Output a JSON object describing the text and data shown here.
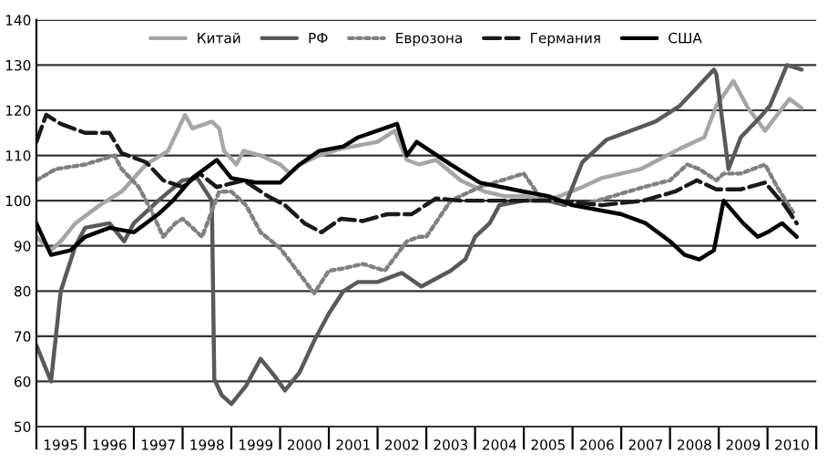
{
  "chart_data": {
    "type": "line",
    "xlim": [
      1995,
      2011
    ],
    "ylim": [
      50,
      140
    ],
    "yticks": [
      50,
      60,
      70,
      80,
      90,
      100,
      110,
      120,
      130,
      140
    ],
    "xticks": [
      {
        "value": 1995,
        "label": null
      },
      {
        "value": 1995.5,
        "label": "1995"
      },
      {
        "value": 1996,
        "label": null
      },
      {
        "value": 1996.5,
        "label": "1996"
      },
      {
        "value": 1997,
        "label": null
      },
      {
        "value": 1997.5,
        "label": "1997"
      },
      {
        "value": 1998,
        "label": null
      },
      {
        "value": 1998.5,
        "label": "1998"
      },
      {
        "value": 1999,
        "label": null
      },
      {
        "value": 1999.5,
        "label": "1999"
      },
      {
        "value": 2000,
        "label": null
      },
      {
        "value": 2000.5,
        "label": "2000"
      },
      {
        "value": 2001,
        "label": null
      },
      {
        "value": 2001.5,
        "label": "2001"
      },
      {
        "value": 2002,
        "label": null
      },
      {
        "value": 2002.5,
        "label": "2002"
      },
      {
        "value": 2003,
        "label": null
      },
      {
        "value": 2003.5,
        "label": "2003"
      },
      {
        "value": 2004,
        "label": null
      },
      {
        "value": 2004.5,
        "label": "2004"
      },
      {
        "value": 2005,
        "label": null
      },
      {
        "value": 2005.5,
        "label": "2005"
      },
      {
        "value": 2006,
        "label": null
      },
      {
        "value": 2006.5,
        "label": "2006"
      },
      {
        "value": 2007,
        "label": null
      },
      {
        "value": 2007.5,
        "label": "2007"
      },
      {
        "value": 2008,
        "label": null
      },
      {
        "value": 2008.5,
        "label": "2008"
      },
      {
        "value": 2009,
        "label": null
      },
      {
        "value": 2009.5,
        "label": "2009"
      },
      {
        "value": 2010,
        "label": null
      },
      {
        "value": 2010.5,
        "label": "2010"
      },
      {
        "value": 2011,
        "label": null
      }
    ],
    "grid": "y",
    "legend": "top",
    "marker": "none",
    "series": [
      {
        "name": "Китай",
        "color": "#a6a6a6",
        "line_style": "solid",
        "x": [
          1995,
          1995.3,
          1995.5,
          1995.8,
          1996.3,
          1996.75,
          1997.25,
          1997.7,
          1998.05,
          1998.2,
          1998.6,
          1998.75,
          1998.85,
          1999.1,
          1999.25,
          1999.6,
          2000,
          2000.2,
          2000.4,
          2000.8,
          2001.25,
          2002,
          2002.35,
          2002.6,
          2002.85,
          2003.2,
          2003.7,
          2004.2,
          2004.6,
          2005,
          2005.5,
          2006.2,
          2006.6,
          2007.4,
          2008.2,
          2008.7,
          2008.95,
          2009.3,
          2009.6,
          2009.95,
          2010.45,
          2010.7
        ],
        "values": [
          92,
          89,
          91,
          95,
          99,
          102,
          108,
          111,
          119,
          116,
          117.5,
          116,
          111,
          108,
          111,
          110,
          108,
          106,
          108,
          110,
          111.5,
          113,
          115.5,
          109,
          108,
          109,
          104.5,
          102,
          101,
          101,
          100,
          103,
          105,
          107,
          111.5,
          114,
          121,
          126.5,
          120.5,
          115.5,
          122.5,
          120.5
        ]
      },
      {
        "name": "РФ",
        "color": "#595959",
        "line_style": "solid",
        "x": [
          1995,
          1995.3,
          1995.5,
          1995.8,
          1996,
          1996.5,
          1996.8,
          1997,
          1997.5,
          1998,
          1998.3,
          1998.6,
          1998.65,
          1998.8,
          1999,
          1999.3,
          1999.6,
          1999.9,
          2000.1,
          2000.4,
          2000.7,
          2001,
          2001.3,
          2001.6,
          2002,
          2002.5,
          2002.9,
          2003.5,
          2003.8,
          2004,
          2004.3,
          2004.5,
          2005,
          2005.5,
          2005.85,
          2006.2,
          2006.7,
          2007.7,
          2008.2,
          2008.55,
          2008.9,
          2008.95,
          2009.2,
          2009.45,
          2009.85,
          2010.05,
          2010.4,
          2010.7
        ],
        "values": [
          68,
          60,
          80,
          90,
          94,
          95,
          91,
          95,
          100,
          104.5,
          105,
          100,
          60.5,
          57,
          55,
          59,
          65,
          61,
          58,
          62,
          69,
          75,
          80,
          82,
          82,
          84,
          81,
          84.5,
          87,
          92,
          95,
          99,
          100,
          100,
          99,
          108.5,
          113.5,
          117.5,
          121,
          125,
          129,
          128,
          107,
          114,
          118.5,
          121,
          130,
          129
        ]
      },
      {
        "name": "Еврозона",
        "color": "#808080",
        "line_style": "dotted",
        "x": [
          1995,
          1995.4,
          1996,
          1996.6,
          1996.75,
          1997.1,
          1997.35,
          1997.6,
          1997.85,
          1998,
          1998.4,
          1998.75,
          1999,
          1999.3,
          1999.6,
          2000,
          2000.35,
          2000.7,
          2001,
          2001.3,
          2001.7,
          2002.15,
          2002.6,
          2002.85,
          2003,
          2003.5,
          2004.1,
          2005,
          2005.35,
          2006.1,
          2006.5,
          2007.45,
          2008,
          2008.35,
          2008.6,
          2008.95,
          2009.1,
          2009.45,
          2009.95,
          2010.2,
          2010.55
        ],
        "values": [
          104.5,
          107,
          108,
          110,
          107,
          103,
          98,
          92,
          95,
          96,
          92,
          102,
          102,
          99,
          93,
          89.5,
          84.5,
          79.5,
          84.5,
          85,
          86,
          84.5,
          91,
          92,
          92,
          100,
          103,
          106,
          100.5,
          99,
          100,
          103,
          104.5,
          108,
          107,
          104.5,
          106,
          106,
          108,
          103,
          97
        ]
      },
      {
        "name": "Германия",
        "color": "#1a1a1a",
        "line_style": "dashed",
        "x": [
          1995,
          1995.2,
          1995.5,
          1996,
          1996.5,
          1996.75,
          1997.25,
          1997.6,
          1998,
          1998.35,
          1998.7,
          1999.25,
          1999.75,
          2000.1,
          2000.5,
          2000.85,
          2001.25,
          2001.7,
          2002.2,
          2002.7,
          2003.2,
          2003.7,
          2004.9,
          2005.7,
          2006.6,
          2007.45,
          2008.1,
          2008.55,
          2008.95,
          2009.45,
          2009.95,
          2010.35,
          2010.6
        ],
        "values": [
          113,
          119,
          117,
          115,
          115,
          110.5,
          108.5,
          104.5,
          103,
          106,
          103,
          104.5,
          101,
          99,
          95,
          93,
          96,
          95.5,
          97,
          97,
          100.5,
          100,
          100,
          100,
          99,
          100,
          102,
          104.5,
          102.5,
          102.5,
          104,
          99,
          95
        ]
      },
      {
        "name": "США",
        "color": "#000000",
        "line_style": "solid",
        "x": [
          1995,
          1995.3,
          1995.7,
          1996,
          1996.5,
          1997,
          1997.5,
          1997.8,
          1998.2,
          1998.7,
          1999,
          1999.5,
          2000,
          2000.4,
          2000.8,
          2001.3,
          2001.6,
          2002.4,
          2002.6,
          2002.8,
          2003.5,
          2004.1,
          2005,
          2005.5,
          2006,
          2007,
          2007.5,
          2008,
          2008.3,
          2008.6,
          2008.9,
          2009.1,
          2009.5,
          2009.8,
          2010,
          2010.3,
          2010.6
        ],
        "values": [
          95,
          88,
          89,
          92,
          94,
          93,
          97,
          100,
          105,
          109,
          105,
          104,
          104,
          108,
          111,
          112,
          114,
          117,
          110,
          113,
          108,
          104,
          102,
          101,
          99,
          97,
          95,
          91,
          88,
          87,
          89,
          100,
          95,
          92,
          93,
          95,
          92
        ]
      }
    ]
  }
}
